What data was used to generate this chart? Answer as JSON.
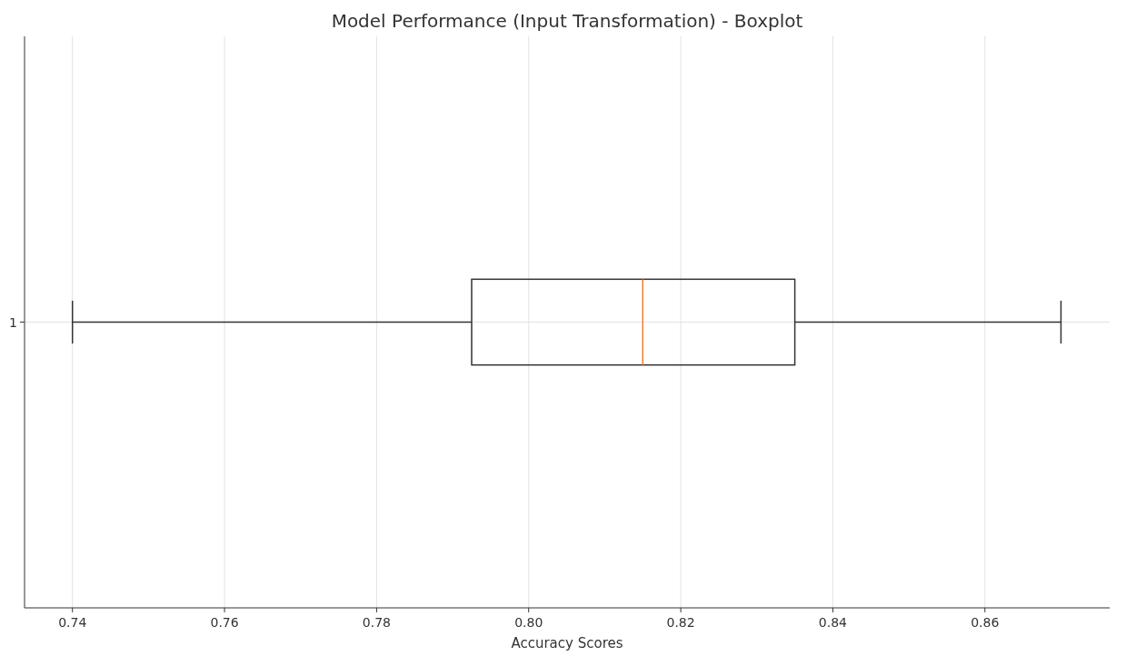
{
  "chart_data": {
    "type": "box",
    "title": "Model Performance (Input Transformation) - Boxplot",
    "xlabel": "Accuracy Scores",
    "orientation": "horizontal",
    "categories": [
      "1"
    ],
    "boxes": [
      {
        "low": 0.74,
        "q1": 0.7925,
        "median": 0.815,
        "q3": 0.835,
        "high": 0.87
      }
    ],
    "xlim": [
      0.7337,
      0.8764
    ],
    "xticks": [
      {
        "value": 0.74,
        "label": "0.74"
      },
      {
        "value": 0.76,
        "label": "0.76"
      },
      {
        "value": 0.78,
        "label": "0.78"
      },
      {
        "value": 0.8,
        "label": "0.80"
      },
      {
        "value": 0.82,
        "label": "0.82"
      },
      {
        "value": 0.84,
        "label": "0.84"
      },
      {
        "value": 0.86,
        "label": "0.86"
      }
    ],
    "grid": true
  }
}
